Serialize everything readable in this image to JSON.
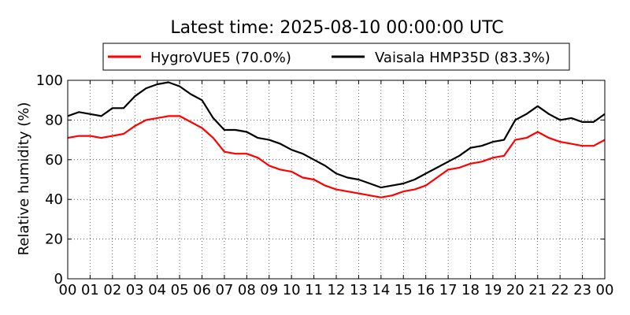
{
  "chart_data": {
    "type": "line",
    "title": "Latest time: 2025-08-10 00:00:00 UTC",
    "xlabel": "",
    "ylabel": "Relative humidity (%)",
    "xlim": [
      0,
      24
    ],
    "ylim": [
      0,
      100
    ],
    "x_ticks": [
      "00",
      "01",
      "02",
      "03",
      "04",
      "05",
      "06",
      "07",
      "08",
      "09",
      "10",
      "11",
      "12",
      "13",
      "14",
      "15",
      "16",
      "17",
      "18",
      "19",
      "20",
      "21",
      "22",
      "23",
      "00"
    ],
    "y_ticks": [
      0,
      20,
      40,
      60,
      80,
      100
    ],
    "grid": true,
    "legend_position": "top",
    "legend": [
      "HygroVUE5 (70.0%)",
      "Vaisala HMP35D (83.3%)"
    ],
    "series": [
      {
        "name": "HygroVUE5 (70.0%)",
        "color": "#ff0000",
        "x": [
          0,
          0.5,
          1,
          1.5,
          2,
          2.5,
          3,
          3.5,
          4,
          4.5,
          5,
          5.5,
          6,
          6.5,
          7,
          7.5,
          8,
          8.5,
          9,
          9.5,
          10,
          10.5,
          11,
          11.5,
          12,
          12.5,
          13,
          13.5,
          14,
          14.5,
          15,
          15.5,
          16,
          16.5,
          17,
          17.5,
          18,
          18.5,
          19,
          19.5,
          20,
          20.5,
          21,
          21.5,
          22,
          22.5,
          23,
          23.5,
          24
        ],
        "values": [
          71,
          72,
          72,
          71,
          72,
          73,
          77,
          80,
          81,
          82,
          82,
          79,
          76,
          71,
          64,
          63,
          63,
          61,
          57,
          55,
          54,
          51,
          50,
          47,
          45,
          44,
          43,
          42,
          41,
          42,
          44,
          45,
          47,
          51,
          55,
          56,
          58,
          59,
          61,
          62,
          70,
          71,
          74,
          71,
          69,
          68,
          67,
          67,
          70
        ]
      },
      {
        "name": "Vaisala HMP35D (83.3%)",
        "color": "#000000",
        "x": [
          0,
          0.5,
          1,
          1.5,
          2,
          2.5,
          3,
          3.5,
          4,
          4.5,
          5,
          5.5,
          6,
          6.5,
          7,
          7.5,
          8,
          8.5,
          9,
          9.5,
          10,
          10.5,
          11,
          11.5,
          12,
          12.5,
          13,
          13.5,
          14,
          14.5,
          15,
          15.5,
          16,
          16.5,
          17,
          17.5,
          18,
          18.5,
          19,
          19.5,
          20,
          20.5,
          21,
          21.5,
          22,
          22.5,
          23,
          23.5,
          24
        ],
        "values": [
          82,
          84,
          83,
          82,
          86,
          86,
          92,
          96,
          98,
          99,
          97,
          93,
          90,
          81,
          75,
          75,
          74,
          71,
          70,
          68,
          65,
          63,
          60,
          57,
          53,
          51,
          50,
          48,
          46,
          47,
          48,
          50,
          53,
          56,
          59,
          62,
          66,
          67,
          69,
          70,
          80,
          83,
          87,
          83,
          80,
          81,
          79,
          79,
          83
        ]
      }
    ]
  }
}
